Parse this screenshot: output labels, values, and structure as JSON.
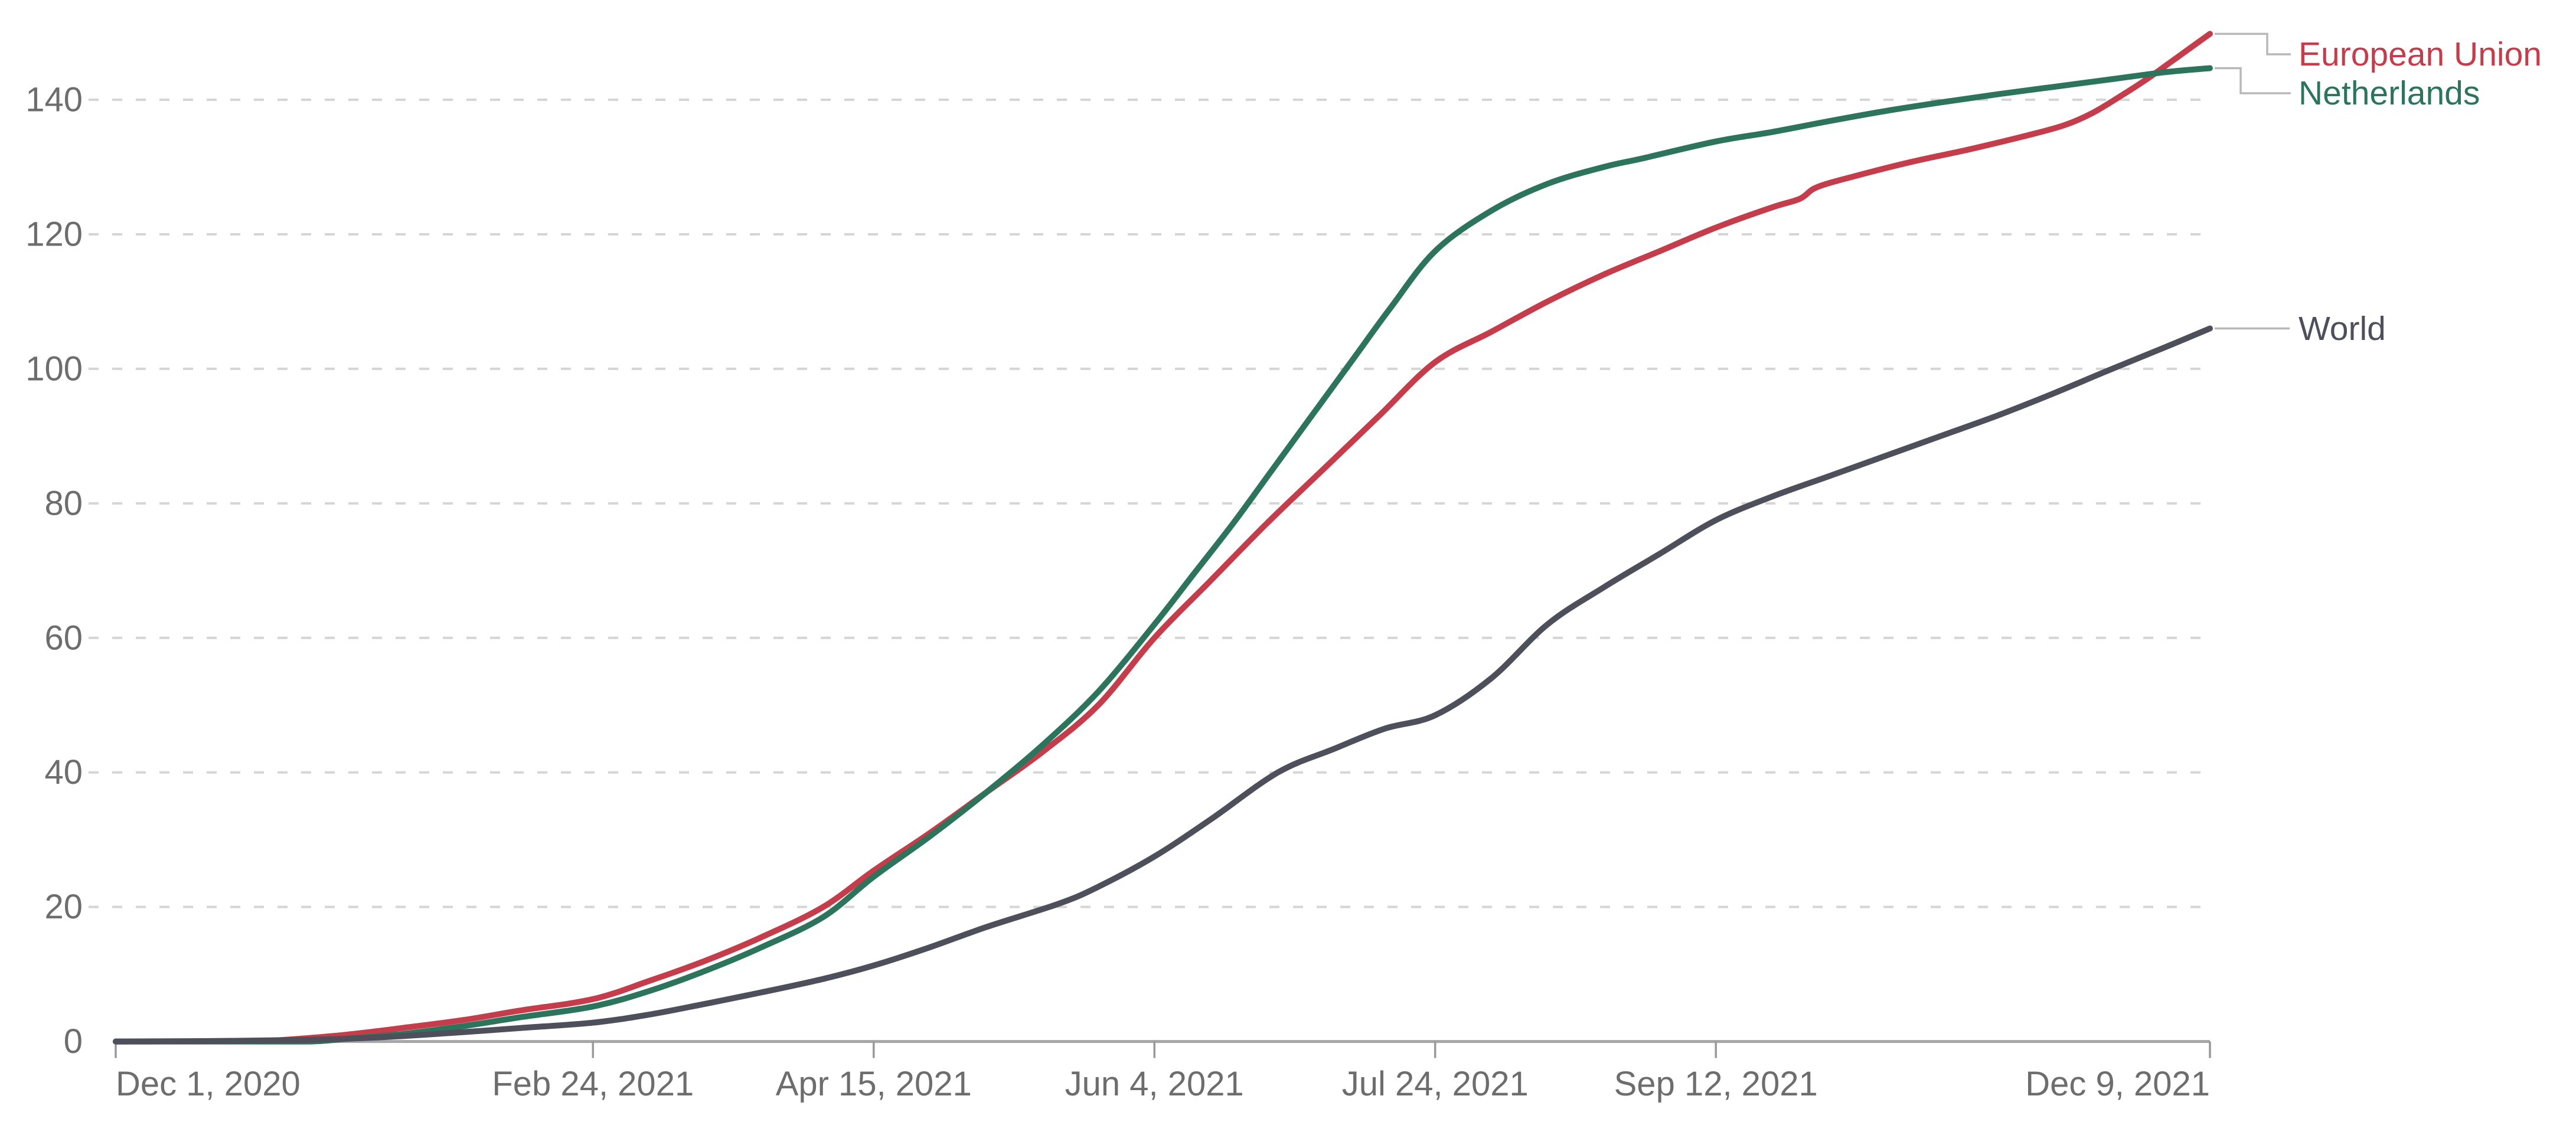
{
  "chart_data": {
    "type": "line",
    "title": "",
    "xlabel": "",
    "ylabel": "",
    "x_axis": {
      "unit": "days since Dec 1, 2020",
      "range_days": [
        0,
        373
      ],
      "ticks": [
        {
          "day": 0,
          "label": "Dec 1, 2020"
        },
        {
          "day": 85,
          "label": "Feb 24, 2021"
        },
        {
          "day": 135,
          "label": "Apr 15, 2021"
        },
        {
          "day": 185,
          "label": "Jun 4, 2021"
        },
        {
          "day": 235,
          "label": "Jul 24, 2021"
        },
        {
          "day": 285,
          "label": "Sep 12, 2021"
        },
        {
          "day": 373,
          "label": "Dec 9, 2021"
        }
      ]
    },
    "y_axis": {
      "ticks": [
        0,
        20,
        40,
        60,
        80,
        100,
        120,
        140
      ],
      "tick_labels": [
        "0",
        "20",
        "40",
        "60",
        "80",
        "100",
        "120",
        "140"
      ],
      "ylim": [
        0,
        150
      ],
      "grid": "dashed-horizontal"
    },
    "legend_position": "right-of-lines",
    "series": [
      {
        "name": "European Union",
        "color": "#c53c4b",
        "points": [
          [
            0,
            0
          ],
          [
            15,
            0.02
          ],
          [
            26,
            0.1
          ],
          [
            31,
            0.3
          ],
          [
            41,
            1
          ],
          [
            51,
            2
          ],
          [
            62,
            3.2
          ],
          [
            72,
            4.6
          ],
          [
            85,
            6.3
          ],
          [
            95,
            9
          ],
          [
            105,
            12
          ],
          [
            115,
            15.5
          ],
          [
            126,
            20
          ],
          [
            135,
            25.4
          ],
          [
            145,
            31
          ],
          [
            155,
            37
          ],
          [
            165,
            43
          ],
          [
            175,
            50
          ],
          [
            185,
            60
          ],
          [
            195,
            68.5
          ],
          [
            205,
            77
          ],
          [
            215,
            85
          ],
          [
            225,
            93
          ],
          [
            235,
            101
          ],
          [
            245,
            105.5
          ],
          [
            255,
            110
          ],
          [
            265,
            114
          ],
          [
            275,
            117.5
          ],
          [
            285,
            121
          ],
          [
            295,
            124
          ],
          [
            300,
            125.3
          ],
          [
            303,
            127
          ],
          [
            310,
            128.7
          ],
          [
            320,
            130.8
          ],
          [
            330,
            132.6
          ],
          [
            340,
            134.6
          ],
          [
            347,
            136.2
          ],
          [
            352,
            138
          ],
          [
            357,
            140.5
          ],
          [
            362,
            143.2
          ],
          [
            367,
            146.2
          ],
          [
            373,
            149.8
          ]
        ]
      },
      {
        "name": "Netherlands",
        "color": "#2c745c",
        "points": [
          [
            0,
            0
          ],
          [
            30,
            0
          ],
          [
            36,
            0.05
          ],
          [
            41,
            0.4
          ],
          [
            51,
            1.1
          ],
          [
            62,
            2.3
          ],
          [
            72,
            3.6
          ],
          [
            85,
            5.2
          ],
          [
            95,
            7.5
          ],
          [
            105,
            10.5
          ],
          [
            115,
            14
          ],
          [
            126,
            18.5
          ],
          [
            135,
            24.5
          ],
          [
            145,
            30.5
          ],
          [
            155,
            37
          ],
          [
            165,
            44
          ],
          [
            175,
            52
          ],
          [
            185,
            62
          ],
          [
            192,
            69.5
          ],
          [
            199,
            77
          ],
          [
            206,
            85
          ],
          [
            213,
            93
          ],
          [
            220,
            101
          ],
          [
            227,
            109
          ],
          [
            235,
            117.5
          ],
          [
            245,
            123.5
          ],
          [
            255,
            127.5
          ],
          [
            265,
            130
          ],
          [
            272,
            131.3
          ],
          [
            285,
            133.8
          ],
          [
            295,
            135.2
          ],
          [
            305,
            136.8
          ],
          [
            315,
            138.3
          ],
          [
            325,
            139.6
          ],
          [
            335,
            140.8
          ],
          [
            345,
            141.9
          ],
          [
            355,
            143
          ],
          [
            365,
            144.1
          ],
          [
            373,
            144.7
          ]
        ]
      },
      {
        "name": "World",
        "color": "#4d4f5a",
        "points": [
          [
            0,
            0
          ],
          [
            15,
            0.05
          ],
          [
            31,
            0.2
          ],
          [
            41,
            0.4
          ],
          [
            51,
            0.8
          ],
          [
            62,
            1.4
          ],
          [
            72,
            2
          ],
          [
            85,
            2.8
          ],
          [
            95,
            4
          ],
          [
            105,
            5.6
          ],
          [
            115,
            7.3
          ],
          [
            126,
            9.3
          ],
          [
            135,
            11.3
          ],
          [
            145,
            14
          ],
          [
            155,
            17
          ],
          [
            168,
            20.5
          ],
          [
            175,
            23
          ],
          [
            185,
            27.5
          ],
          [
            195,
            33
          ],
          [
            207,
            40
          ],
          [
            217,
            43.5
          ],
          [
            226,
            46.5
          ],
          [
            235,
            48.5
          ],
          [
            245,
            54
          ],
          [
            255,
            62
          ],
          [
            265,
            67.5
          ],
          [
            275,
            72.5
          ],
          [
            285,
            77.5
          ],
          [
            295,
            81
          ],
          [
            305,
            84
          ],
          [
            315,
            87
          ],
          [
            325,
            90
          ],
          [
            335,
            93
          ],
          [
            345,
            96.3
          ],
          [
            355,
            99.8
          ],
          [
            365,
            103.2
          ],
          [
            373,
            106
          ]
        ]
      }
    ]
  },
  "colors": {
    "background": "#ffffff",
    "gridline": "#d5d5d5",
    "axis_line": "#a6a6a6",
    "tick_mark": "#999999",
    "tick_text": "#6d6d6d",
    "leader_line": "#b8b8b8"
  }
}
